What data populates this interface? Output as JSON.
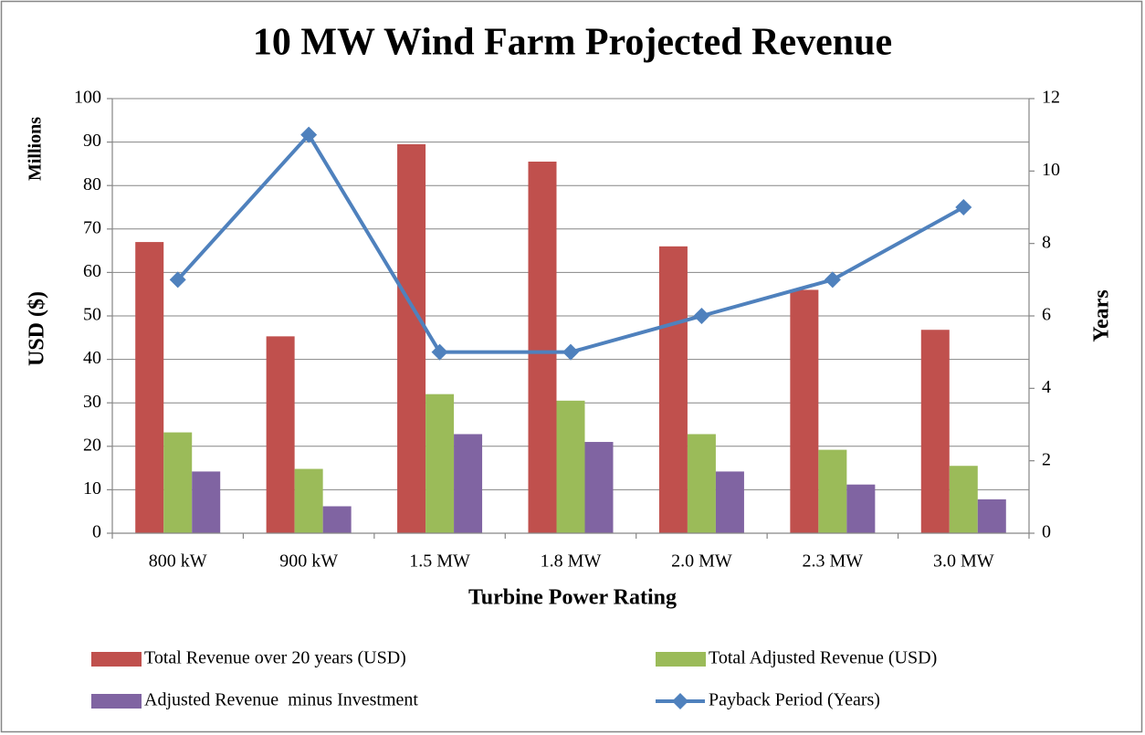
{
  "chart_data": {
    "type": "bar",
    "title": "10 MW Wind Farm Projected Revenue",
    "y_unit_label": "Millions",
    "y_label": "USD ($)",
    "y2_label": "Years",
    "x_label": "Turbine Power Rating",
    "categories": [
      "800 kW",
      "900 kW",
      "1.5 MW",
      "1.8 MW",
      "2.0 MW",
      "2.3 MW",
      "3.0 MW"
    ],
    "series": [
      {
        "name": "Total Revenue over 20 years (USD)",
        "type": "bar",
        "color": "#c0504d",
        "values": [
          67,
          45.3,
          89.5,
          85.5,
          66,
          56,
          46.8
        ]
      },
      {
        "name": "Total Adjusted Revenue (USD)",
        "type": "bar",
        "color": "#9bbb59",
        "values": [
          23.2,
          14.8,
          32,
          30.5,
          22.8,
          19.2,
          15.5
        ]
      },
      {
        "name": "Adjusted Revenue  minus Investment",
        "type": "bar",
        "color": "#8064a2",
        "values": [
          14.2,
          6.2,
          22.8,
          21,
          14.2,
          11.2,
          7.8
        ]
      },
      {
        "name": "Payback Period (Years)",
        "type": "line",
        "axis": "y2",
        "color": "#4f81bd",
        "values": [
          7,
          11,
          5,
          5,
          6,
          7,
          9
        ]
      }
    ],
    "ylim": [
      0,
      100
    ],
    "yticks": [
      0,
      10,
      20,
      30,
      40,
      50,
      60,
      70,
      80,
      90,
      100
    ],
    "y2lim": [
      0,
      12
    ],
    "y2ticks": [
      0,
      2,
      4,
      6,
      8,
      10,
      12
    ],
    "grid": true
  }
}
